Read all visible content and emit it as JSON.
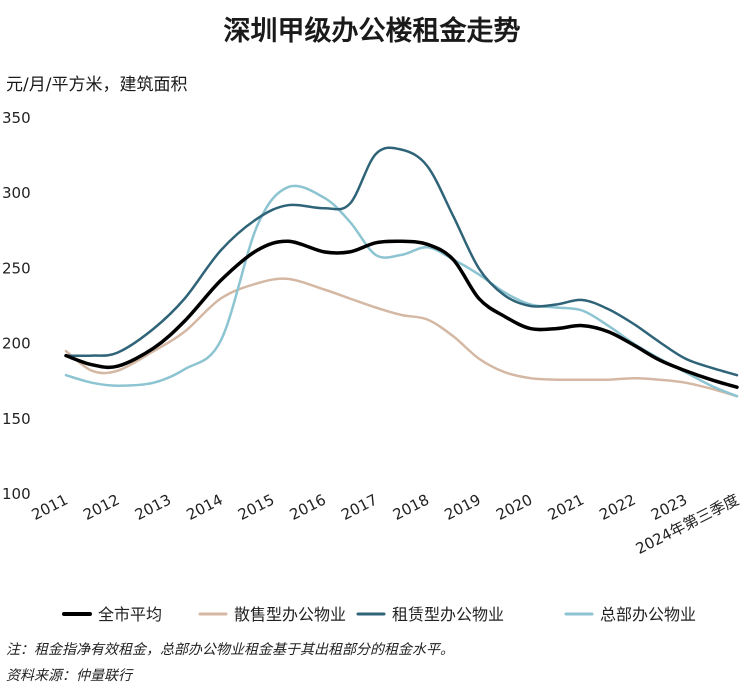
{
  "chart_data": {
    "type": "line",
    "title": "深圳甲级办公楼租金走势",
    "ylabel": "元/月/平方米，建筑面积",
    "xlabel": "",
    "ylim": [
      100,
      350
    ],
    "yticks": [
      100,
      150,
      200,
      250,
      300,
      350
    ],
    "grid": false,
    "legend_position": "bottom",
    "categories": [
      "2011",
      "2012",
      "2013",
      "2014",
      "2015",
      "2016",
      "2017",
      "2018",
      "2019",
      "2020",
      "2021",
      "2022",
      "2023",
      "2024年第三季度"
    ],
    "series": [
      {
        "name": "全市平均",
        "color": "#000000",
        "width": 3.5,
        "values": [
          [
            2011,
            192
          ],
          [
            2011.5,
            186
          ],
          [
            2012,
            185
          ],
          [
            2012.7,
            197
          ],
          [
            2013.3,
            215
          ],
          [
            2014,
            242
          ],
          [
            2014.7,
            262
          ],
          [
            2015.3,
            268
          ],
          [
            2016,
            261
          ],
          [
            2016.5,
            261
          ],
          [
            2017,
            267
          ],
          [
            2017.5,
            268
          ],
          [
            2018,
            266
          ],
          [
            2018.5,
            256
          ],
          [
            2019,
            230
          ],
          [
            2019.5,
            218
          ],
          [
            2020,
            210
          ],
          [
            2020.5,
            210
          ],
          [
            2021,
            212
          ],
          [
            2021.5,
            208
          ],
          [
            2022,
            199
          ],
          [
            2022.5,
            189
          ],
          [
            2023,
            182
          ],
          [
            2023.5,
            176
          ],
          [
            2024,
            171
          ]
        ]
      },
      {
        "name": "散售型办公物业",
        "color": "#d4b8a3",
        "width": 2.5,
        "values": [
          [
            2011,
            195
          ],
          [
            2011.5,
            182
          ],
          [
            2012,
            182
          ],
          [
            2012.7,
            195
          ],
          [
            2013.3,
            208
          ],
          [
            2014,
            230
          ],
          [
            2014.7,
            240
          ],
          [
            2015.3,
            243
          ],
          [
            2016,
            236
          ],
          [
            2016.5,
            230
          ],
          [
            2017,
            224
          ],
          [
            2017.5,
            219
          ],
          [
            2018,
            216
          ],
          [
            2018.5,
            205
          ],
          [
            2019,
            190
          ],
          [
            2019.5,
            181
          ],
          [
            2020,
            177
          ],
          [
            2020.5,
            176
          ],
          [
            2021,
            176
          ],
          [
            2021.5,
            176
          ],
          [
            2022,
            177
          ],
          [
            2022.5,
            176
          ],
          [
            2023,
            174
          ],
          [
            2023.5,
            170
          ],
          [
            2024,
            165
          ]
        ]
      },
      {
        "name": "租赁型办公物业",
        "color": "#2f6478",
        "width": 2.5,
        "values": [
          [
            2011,
            192
          ],
          [
            2011.5,
            192
          ],
          [
            2012,
            194
          ],
          [
            2012.7,
            210
          ],
          [
            2013.3,
            230
          ],
          [
            2014,
            262
          ],
          [
            2014.7,
            283
          ],
          [
            2015.3,
            292
          ],
          [
            2016,
            290
          ],
          [
            2016.5,
            293
          ],
          [
            2017,
            326
          ],
          [
            2017.5,
            329
          ],
          [
            2018,
            318
          ],
          [
            2018.5,
            285
          ],
          [
            2019,
            250
          ],
          [
            2019.5,
            232
          ],
          [
            2020,
            225
          ],
          [
            2020.5,
            226
          ],
          [
            2021,
            229
          ],
          [
            2021.5,
            223
          ],
          [
            2022,
            213
          ],
          [
            2022.5,
            201
          ],
          [
            2023,
            190
          ],
          [
            2023.5,
            184
          ],
          [
            2024,
            179
          ]
        ]
      },
      {
        "name": "总部办公物业",
        "color": "#8cc4d2",
        "width": 2.5,
        "values": [
          [
            2011,
            179
          ],
          [
            2011.5,
            174
          ],
          [
            2012,
            172
          ],
          [
            2012.7,
            174
          ],
          [
            2013.3,
            183
          ],
          [
            2014,
            202
          ],
          [
            2014.7,
            278
          ],
          [
            2015.3,
            304
          ],
          [
            2016,
            297
          ],
          [
            2016.5,
            281
          ],
          [
            2017,
            259
          ],
          [
            2017.5,
            259
          ],
          [
            2018,
            264
          ],
          [
            2018.5,
            256
          ],
          [
            2019,
            246
          ],
          [
            2019.5,
            234
          ],
          [
            2020,
            226
          ],
          [
            2020.5,
            224
          ],
          [
            2021,
            222
          ],
          [
            2021.5,
            212
          ],
          [
            2022,
            200
          ],
          [
            2022.5,
            190
          ],
          [
            2023,
            181
          ],
          [
            2023.5,
            172
          ],
          [
            2024,
            165
          ]
        ]
      }
    ]
  },
  "notes": [
    "注：租金指净有效租金，总部办公物业租金基于其出租部分的租金水平。",
    "资料来源：仲量联行"
  ]
}
